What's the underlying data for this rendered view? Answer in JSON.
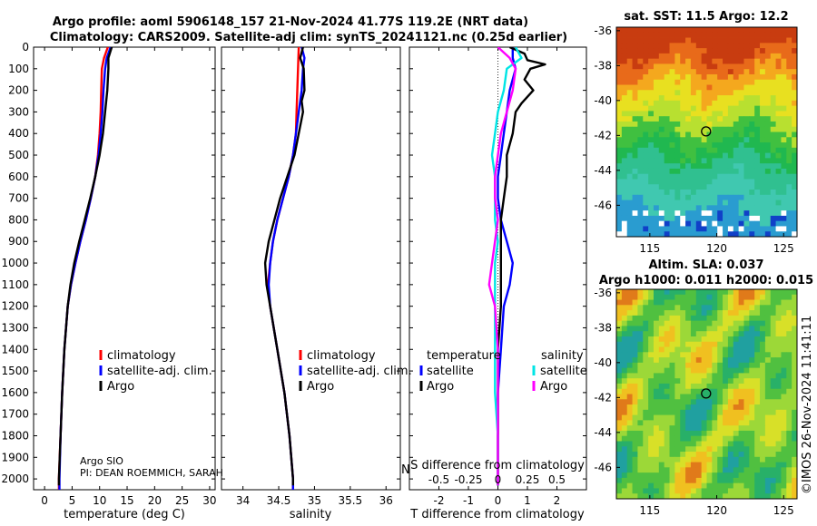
{
  "header": {
    "line1": "Argo profile: aoml 5906148_157 21-Nov-2024 41.77S 119.2E (NRT data)",
    "line2": "Climatology: CARS2009. Satellite-adj clim: synTS_20241121.nc (0.25d earlier)"
  },
  "colors": {
    "climatology": "#ff0000",
    "satellite": "#0000ff",
    "argo": "#000000",
    "sat_salinity": "#00e5e5",
    "argo_salinity": "#ff00ff"
  },
  "chart_data": [
    {
      "type": "line",
      "id": "temperature",
      "xlabel": "temperature (deg C)",
      "xlim": [
        -2,
        31
      ],
      "xticks": [
        "0",
        "5",
        "10",
        "15",
        "20",
        "25",
        "30"
      ],
      "xtick_values": [
        0,
        5,
        10,
        15,
        20,
        25,
        30
      ],
      "ylim": [
        2050,
        0
      ],
      "yticks": [
        "0",
        "100",
        "200",
        "300",
        "400",
        "500",
        "600",
        "700",
        "800",
        "900",
        "1000",
        "1100",
        "1200",
        "1300",
        "1400",
        "1500",
        "1600",
        "1700",
        "1800",
        "1900",
        "2000"
      ],
      "ytick_values": [
        0,
        100,
        200,
        300,
        400,
        500,
        600,
        700,
        800,
        900,
        1000,
        1100,
        1200,
        1300,
        1400,
        1500,
        1600,
        1700,
        1800,
        1900,
        2000
      ],
      "legend": [
        "climatology",
        "satellite-adj. clim.",
        "Argo"
      ],
      "series": [
        {
          "name": "climatology",
          "color": "#ff0000",
          "depth": [
            0,
            50,
            100,
            200,
            300,
            400,
            500,
            600,
            700,
            800,
            900,
            1000,
            1100,
            1200,
            1400,
            1600,
            1800,
            2000,
            2050
          ],
          "values": [
            11.5,
            10.8,
            10.4,
            10.3,
            10.2,
            10.0,
            9.7,
            9.2,
            8.4,
            7.5,
            6.5,
            5.6,
            4.8,
            4.2,
            3.6,
            3.2,
            2.9,
            2.6,
            2.6
          ]
        },
        {
          "name": "satellite-adj. clim.",
          "color": "#0000ff",
          "depth": [
            0,
            50,
            100,
            200,
            300,
            400,
            500,
            600,
            700,
            800,
            900,
            1000,
            1100,
            1200,
            1400,
            1600,
            1800,
            2000,
            2050
          ],
          "values": [
            12.0,
            11.3,
            11.0,
            10.7,
            10.5,
            10.2,
            9.8,
            9.2,
            8.4,
            7.5,
            6.5,
            5.6,
            4.8,
            4.2,
            3.6,
            3.2,
            2.9,
            2.7,
            2.7
          ]
        },
        {
          "name": "Argo",
          "color": "#000000",
          "depth": [
            0,
            50,
            100,
            200,
            300,
            400,
            500,
            600,
            700,
            800,
            900,
            1000,
            1100,
            1200,
            1400,
            1600,
            1800,
            2000,
            2030
          ],
          "values": [
            12.2,
            11.6,
            11.6,
            11.4,
            11.0,
            10.6,
            10.0,
            9.2,
            8.3,
            7.3,
            6.3,
            5.4,
            4.7,
            4.2,
            3.6,
            3.2,
            2.9,
            2.6,
            2.6
          ]
        }
      ]
    },
    {
      "type": "line",
      "id": "salinity",
      "xlabel": "salinity",
      "xlim": [
        33.7,
        36.2
      ],
      "xticks": [
        "34",
        "34.5",
        "35",
        "35.5",
        "36"
      ],
      "xtick_values": [
        34,
        34.5,
        35,
        35.5,
        36
      ],
      "ylim": [
        2050,
        0
      ],
      "legend": [
        "climatology",
        "satellite-adj. clim.",
        "Argo"
      ],
      "series": [
        {
          "name": "climatology",
          "color": "#ff0000",
          "depth": [
            0,
            100,
            200,
            300,
            400,
            500,
            600,
            700,
            800,
            900,
            1000,
            1100,
            1200,
            1400,
            1600,
            1800,
            2000,
            2050
          ],
          "values": [
            34.78,
            34.77,
            34.76,
            34.75,
            34.74,
            34.7,
            34.64,
            34.56,
            34.48,
            34.42,
            34.38,
            34.35,
            34.38,
            34.48,
            34.58,
            34.65,
            34.7,
            34.7
          ]
        },
        {
          "name": "satellite-adj. clim.",
          "color": "#0000ff",
          "depth": [
            0,
            50,
            100,
            200,
            300,
            400,
            500,
            600,
            700,
            800,
            900,
            1000,
            1100,
            1200,
            1400,
            1600,
            1800,
            2000,
            2050
          ],
          "values": [
            34.82,
            34.86,
            34.84,
            34.82,
            34.78,
            34.74,
            34.7,
            34.64,
            34.56,
            34.48,
            34.42,
            34.38,
            34.36,
            34.38,
            34.48,
            34.58,
            34.65,
            34.7,
            34.7
          ]
        },
        {
          "name": "Argo",
          "color": "#000000",
          "depth": [
            0,
            50,
            100,
            200,
            250,
            300,
            400,
            500,
            600,
            700,
            800,
            900,
            1000,
            1100,
            1200,
            1400,
            1600,
            1800,
            2000,
            2030
          ],
          "values": [
            34.84,
            34.8,
            34.85,
            34.86,
            34.82,
            34.84,
            34.78,
            34.72,
            34.62,
            34.52,
            34.44,
            34.36,
            34.31,
            34.33,
            34.38,
            34.48,
            34.58,
            34.65,
            34.7,
            34.7
          ]
        }
      ]
    },
    {
      "type": "line",
      "id": "difference",
      "xlabel": "T difference from climatology",
      "overlay_label": "S difference from climatology",
      "xlim": [
        -3,
        3
      ],
      "xticks": [
        "-2",
        "-1",
        "0",
        "1",
        "2"
      ],
      "xtick_values": [
        -2,
        -1,
        0,
        1,
        2
      ],
      "sticks": [
        "-0.5",
        "-0.25",
        "0",
        "0.25",
        "0.5"
      ],
      "stick_values": [
        -2,
        -1,
        0,
        1,
        2
      ],
      "ylim": [
        2050,
        0
      ],
      "legend_t": {
        "title": "temperature",
        "items": [
          "satellite",
          "Argo"
        ]
      },
      "legend_s": {
        "title": "salinity",
        "items": [
          "satellite",
          "Argo"
        ]
      },
      "series": [
        {
          "name": "T satellite",
          "color": "#0000ff",
          "depth": [
            0,
            50,
            100,
            200,
            300,
            400,
            500,
            600,
            700,
            800,
            900,
            1000,
            1100,
            1200,
            1400,
            1600,
            1800,
            2000,
            2030
          ],
          "values": [
            0.5,
            0.5,
            0.6,
            0.4,
            0.3,
            0.2,
            0.1,
            0.0,
            0.0,
            0.1,
            0.3,
            0.5,
            0.4,
            0.2,
            0.1,
            0.0,
            0.0,
            0.0,
            0.0
          ]
        },
        {
          "name": "T Argo",
          "color": "#000000",
          "depth": [
            0,
            30,
            60,
            80,
            100,
            150,
            200,
            260,
            300,
            400,
            500,
            600,
            700,
            800,
            900,
            1000,
            1100,
            1200,
            1400,
            1600,
            1800,
            2000,
            2030
          ],
          "values": [
            0.4,
            0.9,
            1.0,
            1.6,
            1.1,
            0.9,
            1.2,
            0.8,
            0.6,
            0.5,
            0.3,
            0.3,
            0.2,
            0.1,
            0.1,
            0.1,
            0.1,
            0.1,
            0.0,
            0.0,
            0.0,
            0.0,
            0.0
          ]
        },
        {
          "name": "S satellite",
          "color": "#00e5e5",
          "depth": [
            0,
            50,
            100,
            200,
            300,
            400,
            500,
            600,
            700,
            800,
            900,
            1000,
            1100,
            1200,
            1400,
            1600,
            1800,
            2000,
            2030
          ],
          "values": [
            0.6,
            0.8,
            0.3,
            0.2,
            0.0,
            -0.1,
            -0.2,
            -0.1,
            -0.1,
            -0.1,
            0.0,
            -0.1,
            -0.1,
            -0.1,
            -0.1,
            -0.1,
            0.0,
            0.0,
            0.0
          ]
        },
        {
          "name": "S Argo",
          "color": "#ff00ff",
          "depth": [
            0,
            50,
            100,
            200,
            300,
            400,
            500,
            600,
            700,
            800,
            900,
            1000,
            1100,
            1200,
            1400,
            1600,
            1800,
            2000,
            2030
          ],
          "values": [
            0.0,
            0.4,
            0.6,
            0.5,
            0.3,
            0.1,
            0.0,
            -0.1,
            -0.1,
            0.0,
            -0.1,
            -0.2,
            -0.3,
            -0.1,
            0.0,
            0.0,
            0.0,
            0.0,
            0.0
          ]
        }
      ]
    },
    {
      "type": "heatmap",
      "id": "sst-map",
      "title": "sat. SST: 11.5 Argo: 12.2",
      "xticks": [
        "115",
        "120",
        "125"
      ],
      "xtick_values": [
        115,
        120,
        125
      ],
      "yticks": [
        "-36",
        "-38",
        "-40",
        "-42",
        "-44",
        "-46"
      ],
      "ytick_values": [
        -36,
        -38,
        -40,
        -42,
        -44,
        -46
      ],
      "xlim": [
        112.5,
        126
      ],
      "ylim": [
        -47.8,
        -35.8
      ],
      "marker": {
        "lon": 119.2,
        "lat": -41.77
      }
    },
    {
      "type": "heatmap",
      "id": "sla-map",
      "title1": "Altim. SLA: 0.037",
      "title2": "Argo h1000: 0.011 h2000: 0.015",
      "xticks": [
        "115",
        "120",
        "125"
      ],
      "xtick_values": [
        115,
        120,
        125
      ],
      "yticks": [
        "-36",
        "-38",
        "-40",
        "-42",
        "-44",
        "-46"
      ],
      "ytick_values": [
        -36,
        -38,
        -40,
        -42,
        -44,
        -46
      ],
      "xlim": [
        112.5,
        126
      ],
      "ylim": [
        -47.8,
        -35.8
      ],
      "marker": {
        "lon": 119.2,
        "lat": -41.77
      }
    }
  ],
  "footer": {
    "argo_center": "Argo SIO",
    "pi": "PI: DEAN ROEMMICH, SARAH",
    "pi_clip": "N",
    "credit": "©IMOS 26-Nov-2024 11:41:11"
  }
}
